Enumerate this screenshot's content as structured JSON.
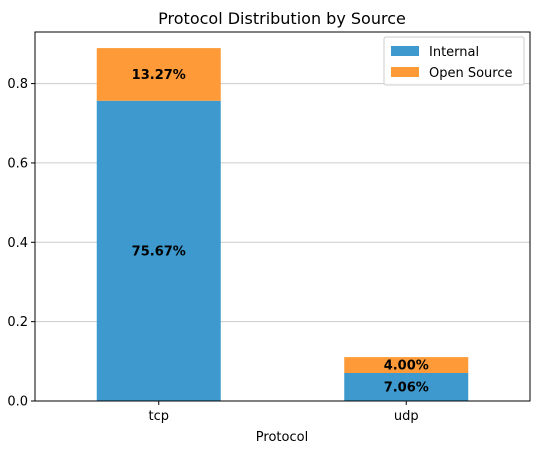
{
  "chart_data": {
    "type": "bar",
    "stacked": true,
    "title": "Protocol Distribution by Source",
    "xlabel": "Protocol",
    "ylabel": "",
    "categories": [
      "tcp",
      "udp"
    ],
    "series": [
      {
        "name": "Internal",
        "color": "#3d99ce",
        "values": [
          0.7567,
          0.0706
        ],
        "labels": [
          "75.67%",
          "7.06%"
        ]
      },
      {
        "name": "Open Source",
        "color": "#fe9a37",
        "values": [
          0.1327,
          0.04
        ],
        "labels": [
          "13.27%",
          "4.00%"
        ]
      }
    ],
    "ylim": [
      0,
      0.93
    ],
    "yticks": [
      0.0,
      0.2,
      0.4,
      0.6,
      0.8
    ],
    "ytick_labels": [
      "0.0",
      "0.2",
      "0.4",
      "0.6",
      "0.8"
    ],
    "grid": "y",
    "legend_position": "top-right"
  }
}
